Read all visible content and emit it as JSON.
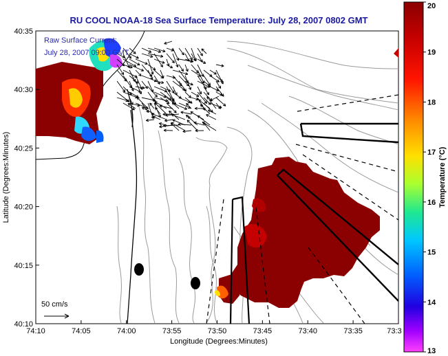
{
  "chart_data": {
    "type": "heatmap",
    "title": "RU COOL  NOAA-18  Sea Surface Temperature:  July 28, 2007 0802 GMT",
    "xlabel": "Longitude (Degrees:Minutes)",
    "ylabel": "Latitude (Degrees:Minutes)",
    "x_ticks": [
      "74:10",
      "74:05",
      "74:00",
      "73:55",
      "73:50",
      "73:45",
      "73:40",
      "73:35",
      "73:3"
    ],
    "y_ticks": [
      "40:35",
      "40:30",
      "40:25",
      "40:20",
      "40:15",
      "40:10"
    ],
    "colorbar": {
      "label": "Temperature (°C)",
      "ticks": [
        "20",
        "19",
        "18",
        "17",
        "16",
        "15",
        "14",
        "13"
      ],
      "range": [
        13,
        20
      ]
    },
    "annotations": {
      "current_line1": "Raw Surface Current:",
      "current_line2": "July 28, 2007 09:00 GMT",
      "scale_label": "50 cm/s"
    },
    "grid": false,
    "colors": {
      "sst_warm": "#8b0000",
      "title": "#1a1aa0",
      "coastline": "#000000",
      "bathymetry": "#999999"
    }
  }
}
